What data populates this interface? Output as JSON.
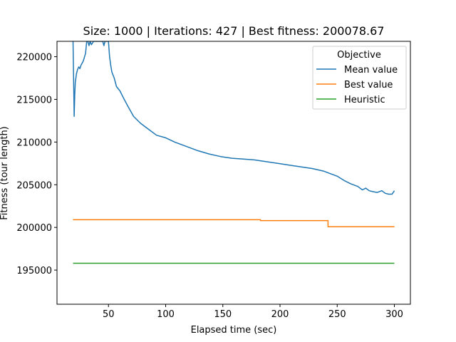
{
  "chart_data": {
    "type": "line",
    "title": "Size: 1000 | Iterations: 427 | Best fitness: 200078.67",
    "xlabel": "Elapsed time (sec)",
    "ylabel": "Fitness (tour length)",
    "xlim": [
      5,
      314
    ],
    "ylim": [
      191000,
      221800
    ],
    "xticks": [
      50,
      100,
      150,
      200,
      250,
      300
    ],
    "yticks": [
      195000,
      200000,
      205000,
      210000,
      215000,
      220000
    ],
    "grid": false,
    "legend": {
      "title": "Objective",
      "placement": "top-right"
    },
    "series": [
      {
        "name": "Mean value",
        "color": "#1f77b4",
        "x": [
          19,
          20,
          20.5,
          21,
          22,
          23,
          24,
          25,
          26,
          28,
          30,
          31,
          32,
          33,
          34,
          35,
          37,
          39,
          41,
          43,
          45,
          46,
          47,
          48,
          49,
          50,
          51,
          52,
          53,
          55,
          57,
          60,
          63,
          67,
          72,
          78,
          85,
          92,
          100,
          108,
          118,
          128,
          138,
          148,
          158,
          168,
          178,
          188,
          198,
          208,
          218,
          228,
          238,
          244,
          250,
          256,
          262,
          268,
          272,
          275,
          278,
          281,
          285,
          289,
          292,
          295,
          298,
          300
        ],
        "y": [
          221800,
          213000,
          215500,
          217000,
          218000,
          218500,
          218800,
          218600,
          219000,
          219500,
          220400,
          221800,
          221800,
          221300,
          221800,
          221400,
          221800,
          221800,
          221800,
          221800,
          221800,
          221300,
          221800,
          221800,
          221800,
          221800,
          220000,
          219000,
          218200,
          217500,
          216500,
          216000,
          215200,
          214200,
          213000,
          212200,
          211500,
          210800,
          210500,
          210000,
          209500,
          209000,
          208600,
          208300,
          208100,
          208000,
          207900,
          207700,
          207500,
          207300,
          207100,
          206900,
          206600,
          206300,
          206000,
          205500,
          205100,
          204800,
          204400,
          204600,
          204300,
          204200,
          204100,
          204300,
          204000,
          203900,
          203900,
          204300
        ]
      },
      {
        "name": "Best value",
        "color": "#ff7f0e",
        "x": [
          19,
          183,
          183,
          242,
          242,
          300
        ],
        "y": [
          200900,
          200900,
          200800,
          200800,
          200080,
          200080
        ]
      },
      {
        "name": "Heuristic",
        "color": "#2ca02c",
        "x": [
          19,
          300
        ],
        "y": [
          195800,
          195800
        ]
      }
    ]
  }
}
